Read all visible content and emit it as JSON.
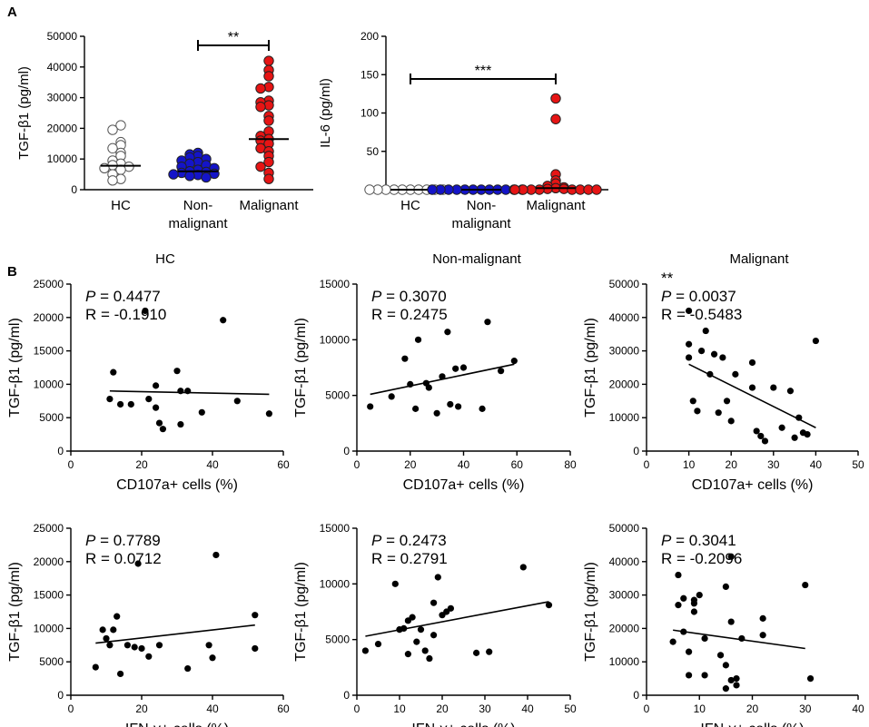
{
  "panels": {
    "A": "A",
    "B": "B"
  },
  "column_titles": [
    "HC",
    "Non-malignant",
    "Malignant"
  ],
  "chart_data": [
    {
      "id": "A1",
      "type": "scatter",
      "title": "",
      "xlabel": "",
      "ylabel": "TGF-β1 (pg/ml)",
      "ylim": [
        0,
        50000
      ],
      "yticks": [
        "0",
        "10000",
        "20000",
        "30000",
        "40000",
        "50000"
      ],
      "categories": [
        "HC",
        "Non-\nmalignant",
        "Malignant"
      ],
      "colors": [
        "#ffffff",
        "#1414c8",
        "#e61414"
      ],
      "medians": [
        7800,
        6000,
        16500
      ],
      "groups": [
        [
          21000,
          19500,
          15500,
          14500,
          13500,
          12000,
          11000,
          9500,
          8500,
          8000,
          7500,
          7000,
          6500,
          5000,
          3500,
          3000
        ],
        [
          12000,
          11500,
          11000,
          10500,
          10000,
          9500,
          9000,
          8500,
          8000,
          7500,
          7000,
          6500,
          6000,
          5800,
          5500,
          5200,
          5000,
          4800,
          4500,
          4000
        ],
        [
          42000,
          39000,
          37000,
          33500,
          33000,
          29000,
          28500,
          27500,
          27000,
          24000,
          22500,
          19000,
          17500,
          16500,
          16000,
          15000,
          13500,
          12500,
          11000,
          9000,
          7500,
          5500,
          3500
        ]
      ],
      "significance": {
        "label": "**",
        "from": 1,
        "to": 2
      }
    },
    {
      "id": "A2",
      "type": "scatter",
      "title": "",
      "xlabel": "",
      "ylabel": "IL-6 (pg/ml)",
      "ylim": [
        0,
        200
      ],
      "yticks": [
        "0",
        "50",
        "100",
        "150",
        "200"
      ],
      "categories": [
        "HC",
        "Non-\nmalignant",
        "Malignant"
      ],
      "colors": [
        "#ffffff",
        "#1414c8",
        "#e61414"
      ],
      "medians": [
        0,
        0,
        2
      ],
      "groups": [
        [
          0,
          0,
          0,
          0,
          0,
          0,
          0,
          0,
          0,
          0
        ],
        [
          0,
          0,
          0,
          0,
          0,
          0,
          0,
          0,
          0,
          0,
          0,
          0
        ],
        [
          119,
          92,
          20,
          12,
          8,
          5,
          3,
          2,
          1,
          1,
          0,
          0,
          0,
          0,
          0,
          0,
          0,
          0
        ]
      ],
      "significance": {
        "label": "***",
        "from": 0,
        "to": 2
      }
    },
    {
      "id": "B1",
      "type": "scatter",
      "title": "HC",
      "xlabel": "CD107a+ cells (%)",
      "ylabel": "TGF-β1 (pg/ml)",
      "xlim": [
        0,
        60
      ],
      "ylim": [
        0,
        25000
      ],
      "xticks": [
        "0",
        "20",
        "40",
        "60"
      ],
      "yticks": [
        "0",
        "5000",
        "10000",
        "15000",
        "20000",
        "25000"
      ],
      "stats": {
        "p_label": "P",
        "p": "= 0.4477",
        "r": "R = -0.1910",
        "stars": ""
      },
      "fit": [
        [
          11,
          9000
        ],
        [
          56,
          8500
        ]
      ],
      "x": [
        11,
        12,
        14,
        17,
        21,
        22,
        24,
        24,
        25,
        26,
        30,
        31,
        31,
        33,
        37,
        43,
        47,
        56
      ],
      "y": [
        7800,
        11800,
        7000,
        7000,
        21000,
        7800,
        9800,
        6500,
        4200,
        3300,
        12000,
        9000,
        4000,
        9000,
        5800,
        19600,
        7500,
        5600
      ]
    },
    {
      "id": "B2",
      "type": "scatter",
      "title": "Non-malignant",
      "xlabel": "CD107a+ cells (%)",
      "ylabel": "TGF-β1 (pg/ml)",
      "xlim": [
        0,
        80
      ],
      "ylim": [
        0,
        15000
      ],
      "xticks": [
        "0",
        "20",
        "40",
        "60",
        "80"
      ],
      "yticks": [
        "0",
        "5000",
        "10000",
        "15000"
      ],
      "stats": {
        "p_label": "P",
        "p": "= 0.3070",
        "r": "R = 0.2475",
        "stars": ""
      },
      "fit": [
        [
          5,
          5100
        ],
        [
          59,
          7800
        ]
      ],
      "x": [
        5,
        13,
        18,
        20,
        22,
        23,
        26,
        27,
        30,
        32,
        34,
        35,
        37,
        38,
        40,
        47,
        49,
        54,
        59
      ],
      "y": [
        4000,
        4900,
        8300,
        6000,
        3800,
        10000,
        6100,
        5700,
        3400,
        6700,
        10700,
        4200,
        7400,
        4000,
        7500,
        3800,
        11600,
        7200,
        8100
      ]
    },
    {
      "id": "B3",
      "type": "scatter",
      "title": "Malignant",
      "xlabel": "CD107a+ cells (%)",
      "ylabel": "TGF-β1 (pg/ml)",
      "xlim": [
        0,
        50
      ],
      "ylim": [
        0,
        50000
      ],
      "xticks": [
        "0",
        "10",
        "20",
        "30",
        "40",
        "50"
      ],
      "yticks": [
        "0",
        "10000",
        "20000",
        "30000",
        "40000",
        "50000"
      ],
      "stats": {
        "p_label": "P",
        "p": "= 0.0037",
        "r": "R = -0.5483",
        "stars": "**"
      },
      "fit": [
        [
          10,
          26000
        ],
        [
          40,
          7000
        ]
      ],
      "x": [
        10,
        10,
        10,
        11,
        12,
        13,
        14,
        15,
        16,
        17,
        18,
        19,
        20,
        21,
        25,
        25,
        26,
        27,
        28,
        30,
        32,
        34,
        35,
        36,
        37,
        38,
        40
      ],
      "y": [
        42000,
        32000,
        28000,
        15000,
        12000,
        30000,
        36000,
        23000,
        29000,
        11500,
        28000,
        15000,
        9000,
        23000,
        19000,
        26500,
        6000,
        4500,
        3000,
        19000,
        7000,
        18000,
        4000,
        10000,
        5500,
        5000,
        33000
      ]
    },
    {
      "id": "B4",
      "type": "scatter",
      "title": "",
      "xlabel": "IFN-γ+ cells (%)",
      "ylabel": "TGF-β1 (pg/ml)",
      "xlim": [
        0,
        60
      ],
      "ylim": [
        0,
        25000
      ],
      "xticks": [
        "0",
        "20",
        "40",
        "60"
      ],
      "yticks": [
        "0",
        "5000",
        "10000",
        "15000",
        "20000",
        "25000"
      ],
      "stats": {
        "p_label": "P",
        "p": "= 0.7789",
        "r": "R = 0.0712",
        "stars": ""
      },
      "fit": [
        [
          7,
          7800
        ],
        [
          52,
          10500
        ]
      ],
      "x": [
        7,
        9,
        10,
        11,
        12,
        13,
        14,
        16,
        18,
        19,
        20,
        22,
        25,
        33,
        39,
        40,
        41,
        52,
        52
      ],
      "y": [
        4200,
        9800,
        8500,
        7500,
        9800,
        11800,
        3200,
        7500,
        7200,
        19700,
        7000,
        5800,
        7500,
        4000,
        7500,
        5600,
        21000,
        7000,
        12000
      ]
    },
    {
      "id": "B5",
      "type": "scatter",
      "title": "",
      "xlabel": "IFN-γ+ cells (%)",
      "ylabel": "TGF-β1 (pg/ml)",
      "xlim": [
        0,
        50
      ],
      "ylim": [
        0,
        15000
      ],
      "xticks": [
        "0",
        "10",
        "20",
        "30",
        "40",
        "50"
      ],
      "yticks": [
        "0",
        "5000",
        "10000",
        "15000"
      ],
      "stats": {
        "p_label": "P",
        "p": "= 0.2473",
        "r": "R = 0.2791",
        "stars": ""
      },
      "fit": [
        [
          2,
          5300
        ],
        [
          45,
          8400
        ]
      ],
      "x": [
        2,
        5,
        9,
        10,
        10,
        11,
        12,
        12,
        13,
        14,
        15,
        16,
        17,
        18,
        18,
        19,
        20,
        21,
        22,
        28,
        31,
        39,
        45
      ],
      "y": [
        4000,
        4600,
        10000,
        5900,
        5900,
        6000,
        3700,
        6700,
        7000,
        4800,
        5900,
        4000,
        3300,
        8300,
        5400,
        10600,
        7200,
        7500,
        7800,
        3800,
        3900,
        11500,
        8100
      ]
    },
    {
      "id": "B6",
      "type": "scatter",
      "title": "",
      "xlabel": "IFN-γ+ cells (%)",
      "ylabel": "TGF-β1 (pg/ml)",
      "xlim": [
        0,
        40
      ],
      "ylim": [
        0,
        50000
      ],
      "xticks": [
        "0",
        "10",
        "20",
        "30",
        "40"
      ],
      "yticks": [
        "0",
        "10000",
        "20000",
        "30000",
        "40000",
        "50000"
      ],
      "stats": {
        "p_label": "P",
        "p": "= 0.3041",
        "r": "R = -0.2096",
        "stars": ""
      },
      "fit": [
        [
          5,
          19500
        ],
        [
          30,
          14000
        ]
      ],
      "x": [
        5,
        6,
        6,
        7,
        7,
        8,
        8,
        9,
        9,
        9,
        10,
        11,
        11,
        14,
        15,
        15,
        15,
        16,
        16,
        16,
        17,
        17,
        18,
        22,
        22,
        30,
        31
      ],
      "y": [
        16000,
        36000,
        27000,
        29000,
        19000,
        13000,
        6000,
        27500,
        28500,
        25000,
        30000,
        6000,
        17000,
        12000,
        32500,
        2000,
        9000,
        4500,
        22000,
        41500,
        5000,
        3000,
        17000,
        23000,
        18000,
        33000,
        5000
      ]
    }
  ]
}
